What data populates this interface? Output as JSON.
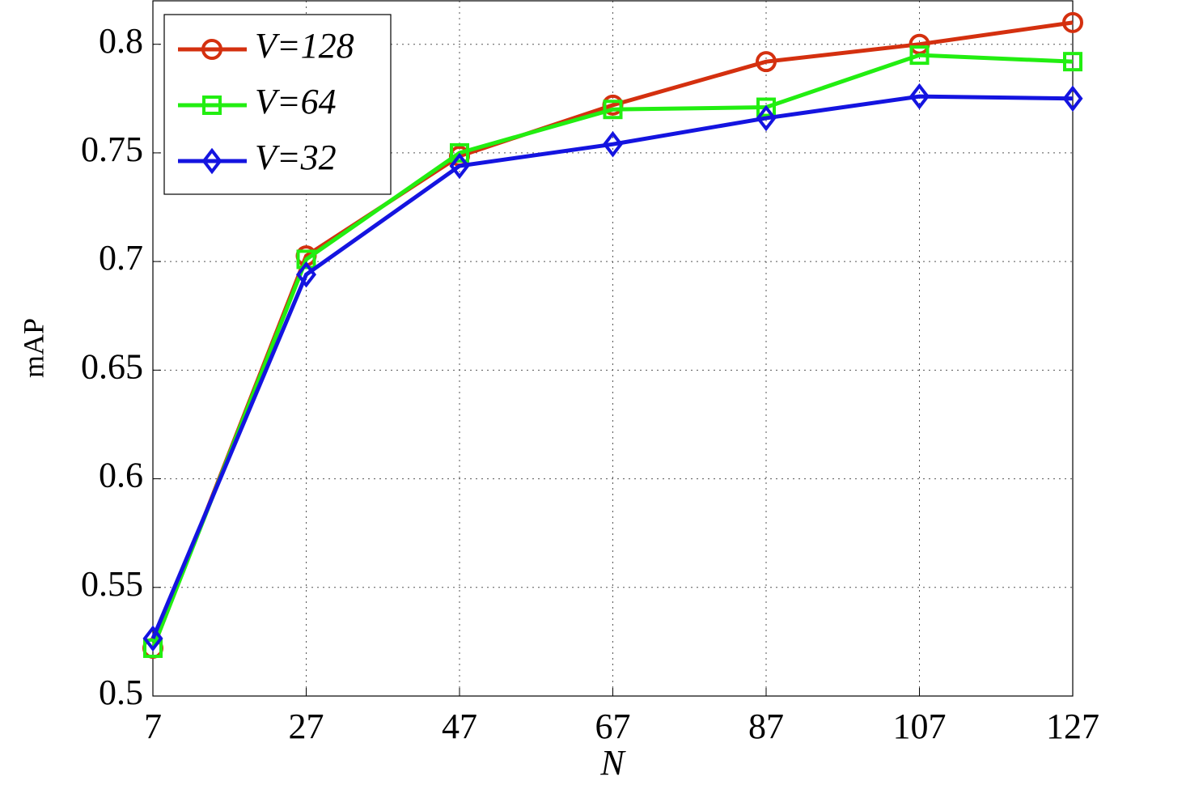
{
  "chart_data": {
    "type": "line",
    "x_label": "N",
    "y_label": "mAP",
    "x": [
      7,
      27,
      47,
      67,
      87,
      107,
      127
    ],
    "series": [
      {
        "name": "V=128",
        "color": "#d4300f",
        "marker": "circle",
        "values": [
          0.522,
          0.7026,
          0.7485,
          0.772,
          0.792,
          0.8,
          0.81
        ]
      },
      {
        "name": "V=64",
        "color": "#22ee11",
        "marker": "square",
        "values": [
          0.522,
          0.701,
          0.75,
          0.77,
          0.771,
          0.795,
          0.792
        ]
      },
      {
        "name": "V=32",
        "color": "#1414e0",
        "marker": "diamond",
        "values": [
          0.5265,
          0.694,
          0.744,
          0.754,
          0.766,
          0.776,
          0.775
        ]
      }
    ],
    "xlim": [
      7,
      127
    ],
    "xticks": [
      7,
      27,
      47,
      67,
      87,
      107,
      127
    ],
    "ylim": [
      0.5,
      0.82
    ],
    "yticks": [
      0.5,
      0.55,
      0.6,
      0.65,
      0.7,
      0.75,
      0.8
    ],
    "grid": true,
    "legend": "upper-left"
  }
}
